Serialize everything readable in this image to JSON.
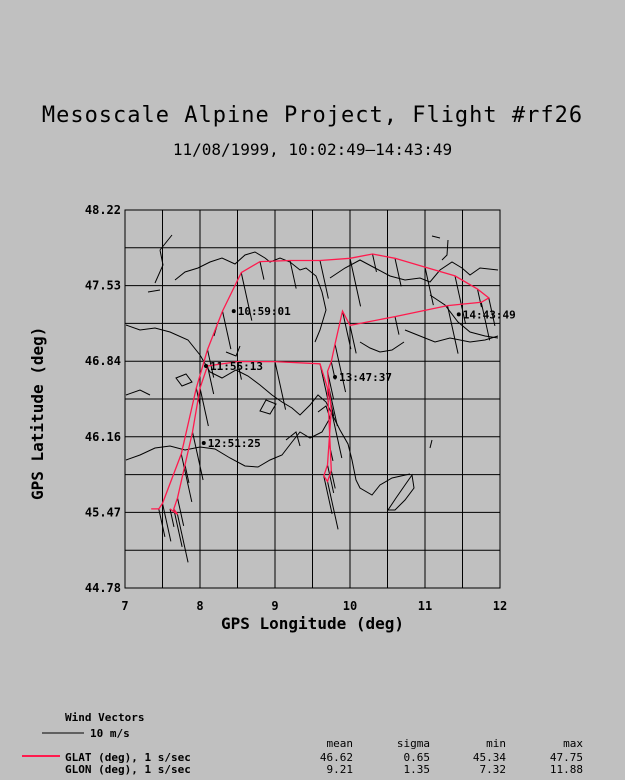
{
  "title": "Mesoscale Alpine Project, Flight #rf26",
  "subtitle": "11/08/1999, 10:02:49–14:43:49",
  "chart_data": {
    "type": "line",
    "xlabel": "GPS Longitude (deg)",
    "ylabel": "GPS Latitude (deg)",
    "xlim": [
      7,
      12
    ],
    "ylim": [
      44.78,
      48.22
    ],
    "x_ticks": [
      "7",
      "8",
      "9",
      "10",
      "11",
      "12"
    ],
    "y_ticks": [
      "44.78",
      "45.47",
      "46.16",
      "46.84",
      "47.53",
      "48.22"
    ],
    "grid": true,
    "series": [
      {
        "name": "GLAT (deg), 1 s/sec",
        "color": "#ff1a4d",
        "x": [
          7.35,
          7.45,
          7.5,
          7.75,
          7.95,
          8.1,
          8.3,
          8.55,
          8.8,
          9.2,
          9.6,
          10.0,
          10.3,
          10.6,
          11.0,
          11.4,
          11.7,
          11.85,
          11.75,
          11.3,
          10.6,
          10.0,
          9.9,
          9.8,
          9.75,
          9.7,
          9.72,
          9.75,
          9.72,
          9.7,
          9.65,
          9.7,
          9.75,
          9.7,
          9.6,
          9.0,
          8.5,
          8.1,
          8.0,
          7.9,
          7.8,
          7.7,
          7.65,
          7.7,
          7.6
        ],
        "y": [
          45.5,
          45.5,
          45.55,
          46.0,
          46.6,
          46.95,
          47.3,
          47.65,
          47.75,
          47.76,
          47.76,
          47.78,
          47.82,
          47.78,
          47.7,
          47.62,
          47.5,
          47.42,
          47.38,
          47.35,
          47.25,
          47.17,
          47.3,
          47.0,
          46.84,
          46.75,
          46.6,
          46.4,
          46.1,
          45.9,
          45.8,
          45.75,
          45.85,
          46.6,
          46.82,
          46.84,
          46.84,
          46.8,
          46.6,
          46.2,
          45.9,
          45.6,
          45.5,
          45.45,
          45.5
        ]
      }
    ],
    "time_annotations": [
      {
        "label": "10:59:01",
        "lon": 8.45,
        "lat": 47.3
      },
      {
        "label": "11:55:13",
        "lon": 8.08,
        "lat": 46.8
      },
      {
        "label": "12:51:25",
        "lon": 8.05,
        "lat": 46.1
      },
      {
        "label": "13:47:37",
        "lon": 9.8,
        "lat": 46.7
      },
      {
        "label": "14:43:49",
        "lon": 11.45,
        "lat": 47.27
      }
    ]
  },
  "legend": {
    "wind_vectors_title": "Wind Vectors",
    "wind_vectors_label": "10 m/s",
    "stats_headers": [
      "mean",
      "sigma",
      "min",
      "max"
    ],
    "rows": [
      {
        "label": "GLAT (deg), 1 s/sec",
        "mean": "46.62",
        "sigma": "0.65",
        "min": "45.34",
        "max": "47.75"
      },
      {
        "label": "GLON (deg), 1 s/sec",
        "mean": "9.21",
        "sigma": "1.35",
        "max": "11.88",
        "min": "7.32"
      }
    ],
    "line_color": "#ff1a4d"
  }
}
